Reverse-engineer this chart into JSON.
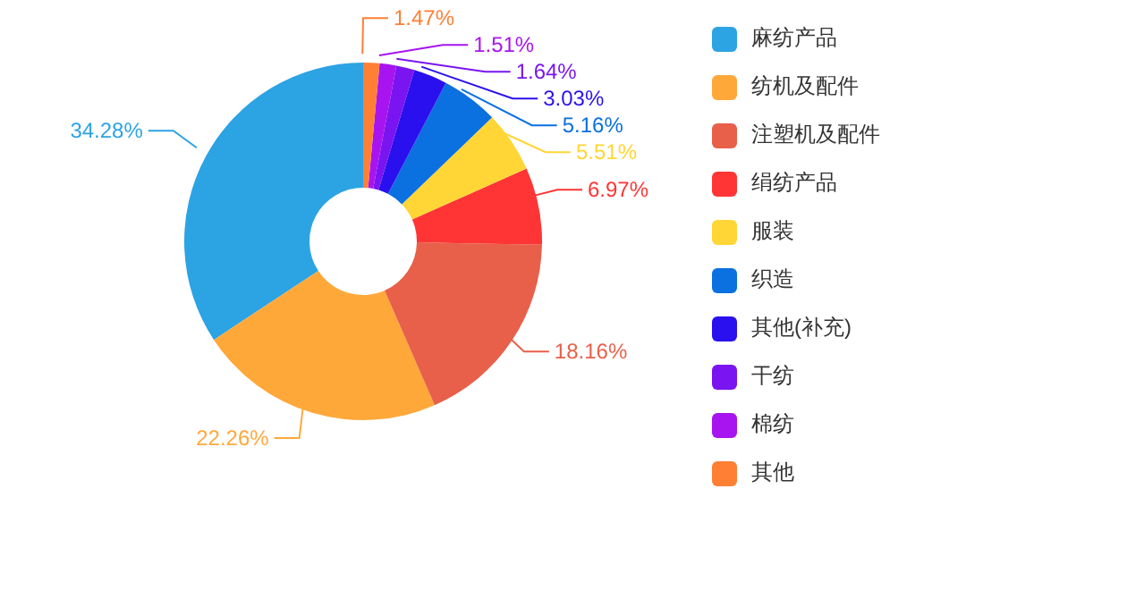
{
  "chart_data": {
    "type": "donut",
    "categories": [
      "麻纺产品",
      "纺机及配件",
      "注塑机及配件",
      "绢纺产品",
      "服装",
      "织造",
      "其他(补充)",
      "干纺",
      "棉纺",
      "其他"
    ],
    "values": [
      34.28,
      22.26,
      18.16,
      6.97,
      5.51,
      5.16,
      3.03,
      1.64,
      1.51,
      1.47
    ],
    "value_labels": [
      "34.28%",
      "22.26%",
      "18.16%",
      "6.97%",
      "5.51%",
      "5.16%",
      "3.03%",
      "1.64%",
      "1.51%",
      "1.47%"
    ],
    "colors": [
      "#2ca3e3",
      "#ffa83a",
      "#e8604a",
      "#ff3535",
      "#ffd635",
      "#0b70e0",
      "#2a10ee",
      "#7a14f0",
      "#a814f0",
      "#ff7f35"
    ],
    "legend": "right"
  }
}
